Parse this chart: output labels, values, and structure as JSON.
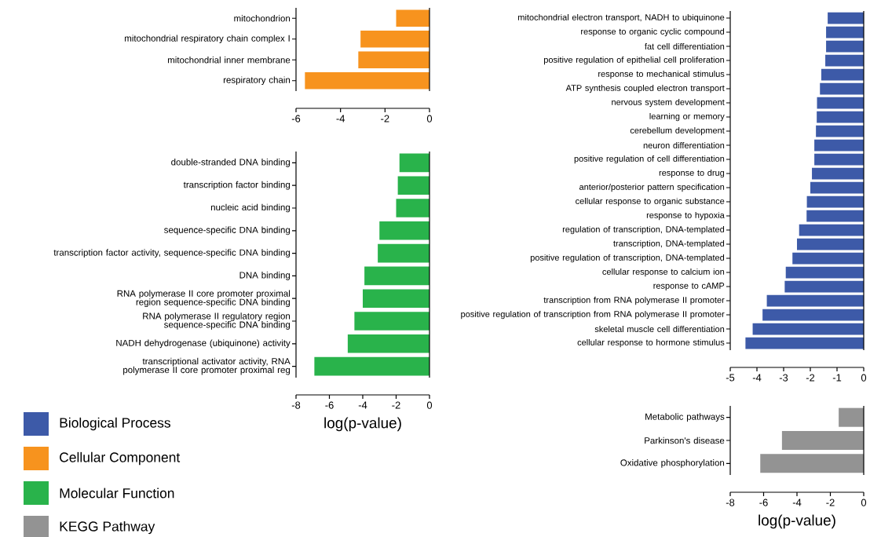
{
  "chart_data": [
    {
      "type": "bar",
      "orientation": "horizontal",
      "categories": [
        "mitochondrion",
        "mitochondrial respiratory chain complex I",
        "mitochondrial inner membrane",
        "respiratory chain"
      ],
      "series": [
        {
          "name": "Cellular Component",
          "color": "#f7931e",
          "values": [
            -1.5,
            -3.1,
            -3.2,
            -5.6
          ]
        }
      ],
      "xlim": [
        -6,
        0
      ],
      "xticks": [
        -6,
        -4,
        -2,
        0
      ]
    },
    {
      "type": "bar",
      "orientation": "horizontal",
      "categories": [
        "double-stranded DNA binding",
        "transcription factor binding",
        "nucleic acid binding",
        "sequence-specific DNA binding",
        "transcription factor activity, sequence-specific DNA binding",
        "DNA binding",
        "RNA polymerase II core promoter proximal region sequence-specific DNA binding",
        "RNA polymerase II regulatory region sequence-specific DNA binding",
        "NADH dehydrogenase (ubiquinone) activity",
        "transcriptional activator activity, RNA polymerase II core promoter proximal reg"
      ],
      "series": [
        {
          "name": "Molecular Function",
          "color": "#29b34b",
          "values": [
            -1.8,
            -1.9,
            -2.0,
            -3.0,
            -3.1,
            -3.9,
            -4.0,
            -4.5,
            -4.9,
            -6.9
          ]
        }
      ],
      "xlim": [
        -8,
        0
      ],
      "xticks": [
        -8,
        -6,
        -4,
        -2,
        0
      ],
      "xlabel": "log(p-value)"
    },
    {
      "type": "bar",
      "orientation": "horizontal",
      "categories": [
        "mitochondrial electron transport, NADH to ubiquinone",
        "response to organic cyclic compound",
        "fat cell differentiation",
        "positive regulation of epithelial cell proliferation",
        "response to mechanical stimulus",
        "ATP synthesis coupled electron transport",
        "nervous system development",
        "learning or memory",
        "cerebellum development",
        "neuron differentiation",
        "positive regulation of cell differentiation",
        "response to drug",
        "anterior/posterior pattern specification",
        "cellular response to organic substance",
        "response to hypoxia",
        "regulation of transcription, DNA-templated",
        "transcription, DNA-templated",
        "positive regulation of transcription, DNA-templated",
        "cellular response to calcium ion",
        "response to cAMP",
        "transcription from RNA polymerase II promoter",
        "positive regulation of transcription from RNA polymerase II promoter",
        "skeletal muscle cell differentiation",
        "cellular response to hormone stimulus"
      ],
      "series": [
        {
          "name": "Biological Process",
          "color": "#3d5aa8",
          "values": [
            -1.35,
            -1.41,
            -1.41,
            -1.44,
            -1.59,
            -1.64,
            -1.75,
            -1.76,
            -1.79,
            -1.85,
            -1.85,
            -1.94,
            -2.0,
            -2.13,
            -2.14,
            -2.42,
            -2.5,
            -2.67,
            -2.92,
            -2.96,
            -3.63,
            -3.79,
            -4.16,
            -4.43
          ]
        }
      ],
      "xlim": [
        -5,
        0
      ],
      "xticks": [
        -5,
        -4,
        -3,
        -2,
        -1,
        0
      ]
    },
    {
      "type": "bar",
      "orientation": "horizontal",
      "categories": [
        "Metabolic pathways",
        "Parkinson's disease",
        "Oxidative phosphorylation"
      ],
      "series": [
        {
          "name": "KEGG Pathway",
          "color": "#939393",
          "values": [
            -1.5,
            -4.9,
            -6.2
          ]
        }
      ],
      "xlim": [
        -8,
        0
      ],
      "xticks": [
        -8,
        -6,
        -4,
        -2,
        0
      ],
      "xlabel": "log(p-value)"
    }
  ]
}
